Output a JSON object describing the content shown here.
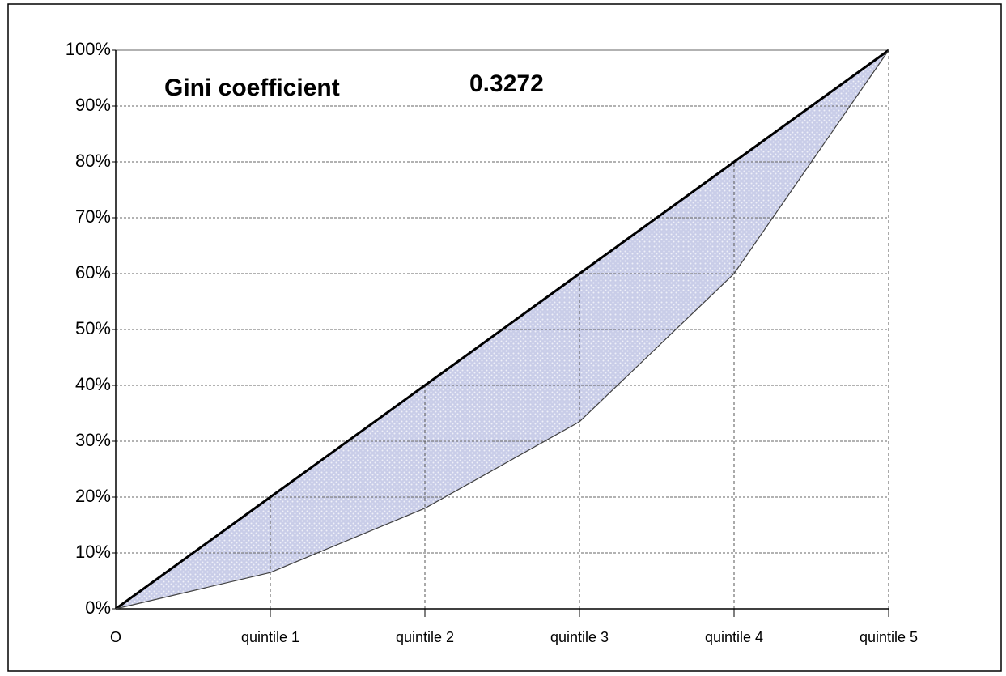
{
  "chart_data": {
    "type": "line",
    "annotations": [
      {
        "text": "Gini coefficient"
      },
      {
        "text": "0.3272"
      }
    ],
    "categories": [
      "O",
      "quintile 1",
      "quintile 2",
      "quintile 3",
      "quintile 4",
      "quintile 5"
    ],
    "series": [
      {
        "color": "#000000",
        "values": [
          0,
          20,
          40,
          60,
          80,
          100
        ]
      },
      {
        "color": "#404040",
        "values": [
          0,
          6.5,
          18,
          33.5,
          60,
          100
        ]
      }
    ],
    "fill_color": "#c9cde8",
    "ylim": [
      0,
      100
    ],
    "yticks": [
      {
        "value": 0,
        "label": "0%"
      },
      {
        "value": 10,
        "label": "10%"
      },
      {
        "value": 20,
        "label": "20%"
      },
      {
        "value": 30,
        "label": "30%"
      },
      {
        "value": 40,
        "label": "40%"
      },
      {
        "value": 50,
        "label": "50%"
      },
      {
        "value": 60,
        "label": "60%"
      },
      {
        "value": 70,
        "label": "70%"
      },
      {
        "value": 80,
        "label": "80%"
      },
      {
        "value": 90,
        "label": "90%"
      },
      {
        "value": 100,
        "label": "100%"
      }
    ],
    "grid": true
  }
}
